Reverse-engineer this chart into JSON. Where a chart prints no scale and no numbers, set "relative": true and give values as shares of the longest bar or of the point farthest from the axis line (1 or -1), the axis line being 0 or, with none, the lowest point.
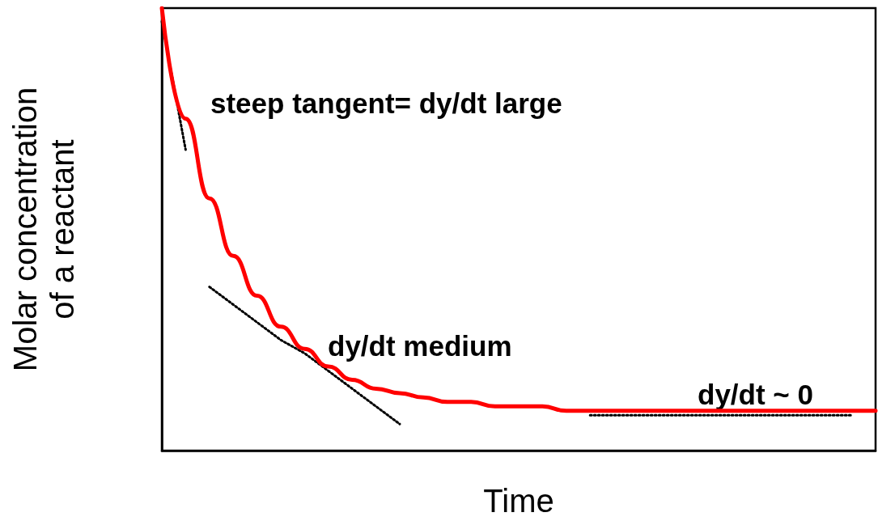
{
  "chart_data": {
    "type": "line",
    "relative": true,
    "xlabel": "Time",
    "ylabel": "Molar concentration of a reactant",
    "categories": [
      null,
      null,
      null,
      null,
      null,
      null,
      null,
      null,
      null,
      null,
      null,
      null,
      null,
      null,
      null,
      null,
      null,
      null,
      null,
      null,
      null,
      null,
      null,
      null,
      null,
      null,
      null,
      null,
      null,
      null,
      null
    ],
    "series": [
      {
        "color": "#ff0000",
        "line_style": "solid",
        "values": [
          1.0,
          0.75,
          0.57,
          0.44,
          0.35,
          0.28,
          0.23,
          0.19,
          0.16,
          0.14,
          0.13,
          0.12,
          0.11,
          0.11,
          0.1,
          0.1,
          0.1,
          0.09,
          0.09,
          0.09,
          0.09,
          0.09,
          0.09,
          0.09,
          0.09,
          0.09,
          0.09,
          0.09,
          0.09,
          0.09,
          0.09
        ]
      },
      {
        "color": "#000000",
        "line_style": "dotted",
        "values": [
          0.97,
          0.68,
          null,
          null,
          null,
          null,
          null,
          null,
          null,
          null,
          null,
          null,
          null,
          null,
          null,
          null,
          null,
          null,
          null,
          null,
          null,
          null,
          null,
          null,
          null,
          null,
          null,
          null,
          null,
          null,
          null
        ]
      },
      {
        "color": "#000000",
        "line_style": "dotted",
        "values": [
          null,
          null,
          0.37,
          0.33,
          0.29,
          0.25,
          0.22,
          0.18,
          0.14,
          0.1,
          0.06,
          null,
          null,
          null,
          null,
          null,
          null,
          null,
          null,
          null,
          null,
          null,
          null,
          null,
          null,
          null,
          null,
          null,
          null,
          null,
          null
        ]
      },
      {
        "color": "#000000",
        "line_style": "dotted",
        "values": [
          null,
          null,
          null,
          null,
          null,
          null,
          null,
          null,
          null,
          null,
          null,
          null,
          null,
          null,
          null,
          null,
          null,
          null,
          0.08,
          0.08,
          0.08,
          0.08,
          0.08,
          0.08,
          0.08,
          0.08,
          0.08,
          0.08,
          0.08,
          0.08,
          null
        ]
      }
    ],
    "annotations": [
      "steep tangent= dy/dt large",
      "dy/dt medium",
      "dy/dt ~ 0"
    ],
    "marker": "none",
    "grid": false
  }
}
